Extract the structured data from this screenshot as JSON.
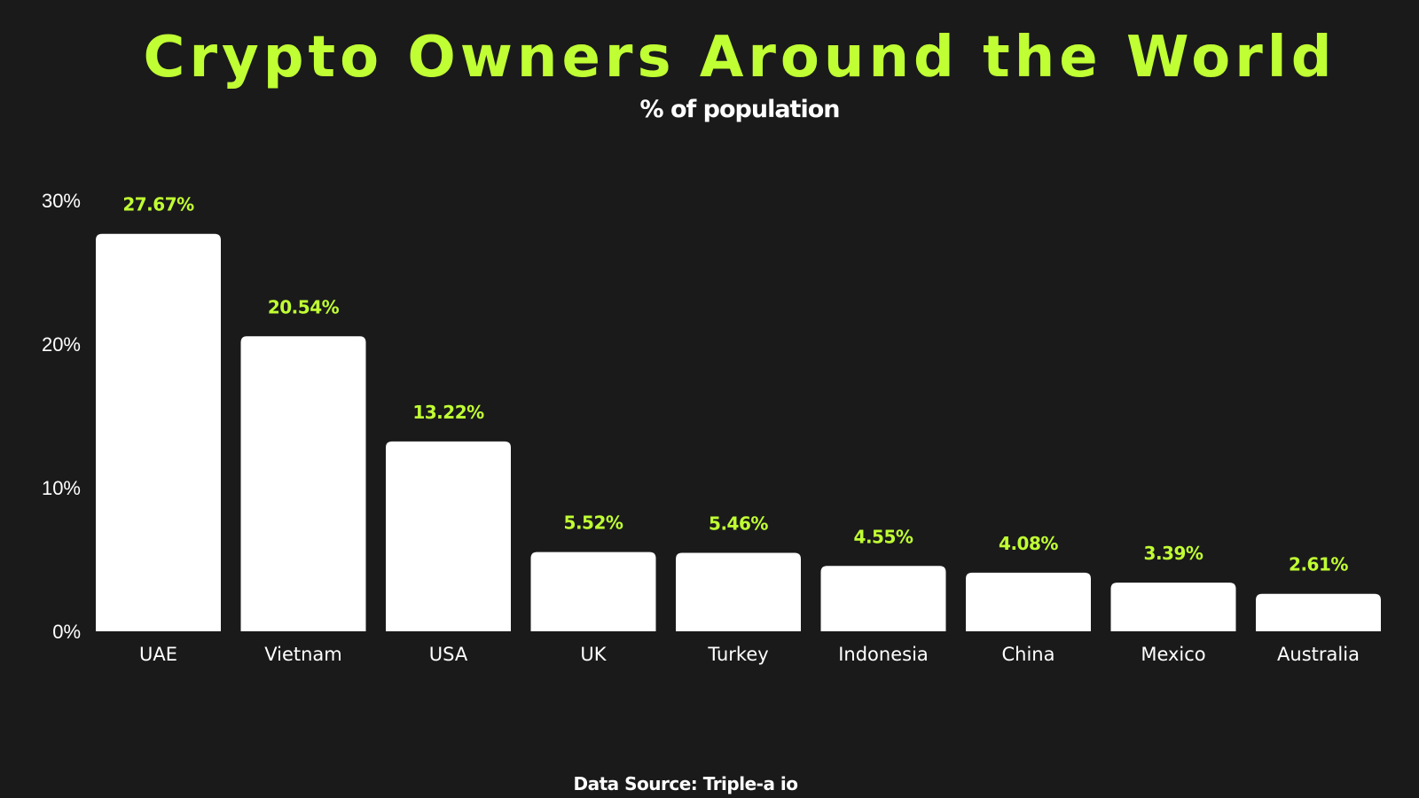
{
  "header": {
    "title": "Crypto Owners Around the World",
    "subtitle": "% of population"
  },
  "footer": {
    "source": "Data Source: Triple-a io"
  },
  "colors": {
    "background": "#1a1a1a",
    "accent": "#c0ff33",
    "bar": "#ffffff",
    "text": "#ffffff"
  },
  "chart_data": {
    "type": "bar",
    "title": "Crypto Owners Around the World",
    "subtitle": "% of population",
    "categories": [
      "UAE",
      "Vietnam",
      "USA",
      "UK",
      "Turkey",
      "Indonesia",
      "China",
      "Mexico",
      "Australia"
    ],
    "values": [
      27.67,
      20.54,
      13.22,
      5.52,
      5.46,
      4.55,
      4.08,
      3.39,
      2.61
    ],
    "data_labels": [
      "27.67%",
      "20.54%",
      "13.22%",
      "5.52%",
      "5.46%",
      "4.55%",
      "4.08%",
      "3.39%",
      "2.61%"
    ],
    "yticks": [
      0,
      10,
      20,
      30
    ],
    "ytick_labels": [
      "0%",
      "10%",
      "20%",
      "30%"
    ],
    "ylim": [
      0,
      30
    ],
    "xlabel": "",
    "ylabel": "",
    "grid": false,
    "legend": "none"
  }
}
